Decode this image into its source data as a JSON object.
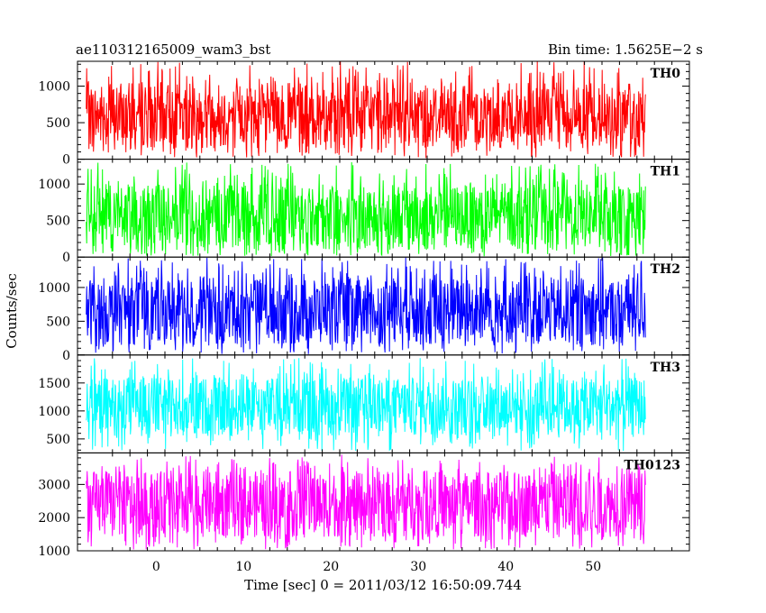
{
  "header": {
    "left": "ae110312165009_wam3_bst",
    "right": "Bin time: 1.5625E−2 s"
  },
  "chart_data": {
    "type": "line",
    "title": "ae110312165009_wam3_bst",
    "subtitle": "Bin time: 1.5625E−2 s",
    "xlabel": "Time [sec] 0 = 2011/03/12 16:50:09.744",
    "ylabel": "Counts/sec",
    "xlim": [
      -9,
      61
    ],
    "x_range_data": [
      -8,
      56
    ],
    "bin_time_s": 0.015625,
    "x_ticks": [
      0,
      10,
      20,
      30,
      40,
      50
    ],
    "grid": false,
    "legend": "none",
    "panels": [
      {
        "name": "TH0",
        "color": "#ff0000",
        "ylim": [
          0,
          1340
        ],
        "y_ticks": [
          0,
          500,
          1000
        ],
        "typical_range": [
          150,
          1050
        ],
        "max": 1340
      },
      {
        "name": "TH1",
        "color": "#00ff00",
        "ylim": [
          0,
          1340
        ],
        "y_ticks": [
          0,
          500,
          1000
        ],
        "typical_range": [
          120,
          1000
        ],
        "max": 1300
      },
      {
        "name": "TH2",
        "color": "#0000ff",
        "ylim": [
          0,
          1450
        ],
        "y_ticks": [
          0,
          500,
          1000
        ],
        "typical_range": [
          150,
          1150
        ],
        "max": 1450
      },
      {
        "name": "TH3",
        "color": "#00ffff",
        "ylim": [
          250,
          2000
        ],
        "y_ticks": [
          500,
          1000,
          1500
        ],
        "typical_range": [
          550,
          1600
        ],
        "max": 1950
      },
      {
        "name": "TH0123",
        "color": "#ff00ff",
        "ylim": [
          1000,
          3950
        ],
        "y_ticks": [
          1000,
          2000,
          3000
        ],
        "typical_range": [
          1400,
          3400
        ],
        "max": 3900
      }
    ]
  }
}
